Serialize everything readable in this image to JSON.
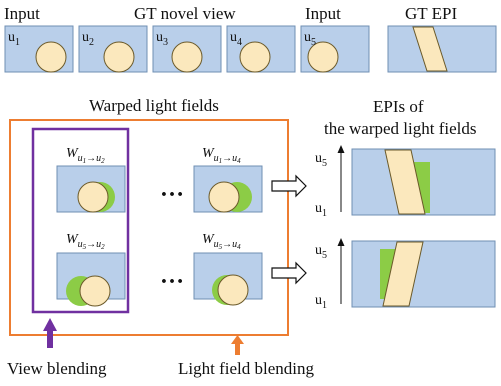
{
  "header": {
    "input_left": "Input",
    "gt_novel_view": "GT novel view",
    "input_right": "Input",
    "gt_epi": "GT EPI"
  },
  "views": [
    {
      "label": "u",
      "sub": "1"
    },
    {
      "label": "u",
      "sub": "2"
    },
    {
      "label": "u",
      "sub": "3"
    },
    {
      "label": "u",
      "sub": "4"
    },
    {
      "label": "u",
      "sub": "5"
    }
  ],
  "warped": {
    "title": "Warped light fields",
    "cells": [
      {
        "w": "W",
        "from": "u",
        "from_sub": "1",
        "arrow": "→",
        "to": "u",
        "to_sub": "2"
      },
      {
        "w": "W",
        "from": "u",
        "from_sub": "1",
        "arrow": "→",
        "to": "u",
        "to_sub": "4"
      },
      {
        "w": "W",
        "from": "u",
        "from_sub": "5",
        "arrow": "→",
        "to": "u",
        "to_sub": "2"
      },
      {
        "w": "W",
        "from": "u",
        "from_sub": "5",
        "arrow": "→",
        "to": "u",
        "to_sub": "4"
      }
    ],
    "ellipsis": "…"
  },
  "epis": {
    "title_line1": "EPIs of",
    "title_line2": "the warped light fields",
    "axis_top": {
      "label": "u",
      "sub": "5"
    },
    "axis_bottom": {
      "label": "u",
      "sub": "1"
    }
  },
  "bottom": {
    "view_blending": "View blending",
    "lf_blending": "Light field blending"
  },
  "colors": {
    "panel_fill": "#b9cfea",
    "panel_stroke": "#6f8fb3",
    "circle_fill": "#fbe8bd",
    "circle_stroke": "#6b5a2a",
    "green": "#8ccc46",
    "view_blending": "#7030a0",
    "lf_blending": "#ed7d31"
  }
}
